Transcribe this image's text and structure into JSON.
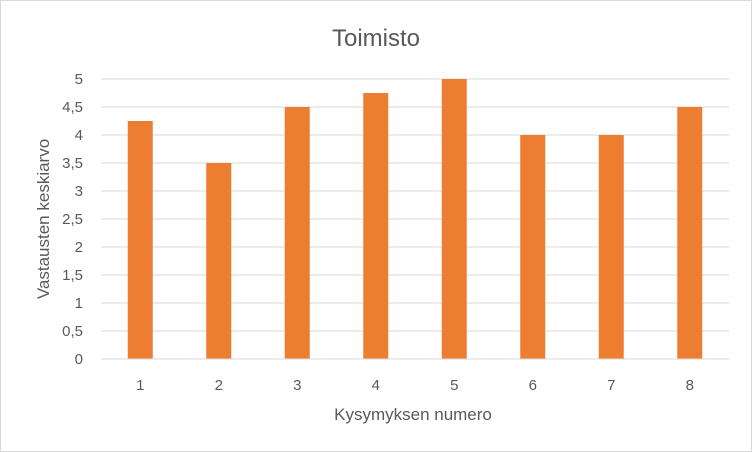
{
  "chart_data": {
    "type": "bar",
    "title": "Toimisto",
    "xlabel": "Kysymyksen numero",
    "ylabel": "Vastausten keskiarvo",
    "categories": [
      "1",
      "2",
      "3",
      "4",
      "5",
      "6",
      "7",
      "8"
    ],
    "values": [
      4.25,
      3.5,
      4.5,
      4.75,
      5,
      4,
      4,
      4.5
    ],
    "ylim": [
      0,
      5
    ],
    "y_ticks": [
      "0",
      "0,5",
      "1",
      "1,5",
      "2",
      "2,5",
      "3",
      "3,5",
      "4",
      "4,5",
      "5"
    ],
    "y_tick_values": [
      0,
      0.5,
      1,
      1.5,
      2,
      2.5,
      3,
      3.5,
      4,
      4.5,
      5
    ],
    "grid": true,
    "legend": "none",
    "bar_color": "#ED7D31",
    "grid_color": "#D9D9D9",
    "text_color": "#595959"
  }
}
